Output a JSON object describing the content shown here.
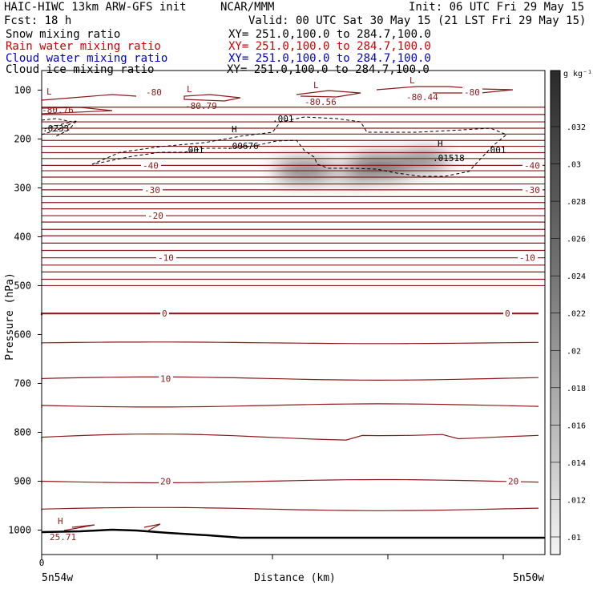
{
  "header": {
    "title_left": "HAIC-HIWC 13km ARW-GFS init",
    "center_org": "NCAR/MMM",
    "init_time": "Init: 06 UTC Fri 29 May 15",
    "fcst": "Fcst:   18 h",
    "valid_time": "Valid: 00 UTC Sat 30 May 15 (21 LST Fri 29 May 15)"
  },
  "legend_rows": [
    {
      "name": "Snow mixing ratio",
      "xy": "XY= 251.0,100.0 to 284.7,100.0",
      "color": "black"
    },
    {
      "name": "Rain water mixing ratio",
      "xy": "XY= 251.0,100.0 to 284.7,100.0",
      "color": "red"
    },
    {
      "name": "Cloud water mixing ratio",
      "xy": "XY= 251.0,100.0 to 284.7,100.0",
      "color": "blue"
    },
    {
      "name": "Cloud ice mixing ratio",
      "xy": "XY= 251.0,100.0 to 284.7,100.0",
      "color": "black"
    }
  ],
  "colors": {
    "temp_contour": "#8b1a1a",
    "terrain": "#000000",
    "cloud_ice_contour": "#000000",
    "shading": "#303030"
  },
  "chart_data": {
    "type": "cross-section",
    "ylabel": "Pressure (hPa)",
    "xlabel": "Distance (km)",
    "x_tick_labels": [
      "0"
    ],
    "x_end_labels": {
      "left": "5n54w",
      "right": "5n50w"
    },
    "y_ticks": [
      100,
      200,
      300,
      400,
      500,
      600,
      700,
      800,
      900,
      1000
    ],
    "ylim": [
      1050,
      60
    ],
    "temperature_labels": [
      {
        "value": "-80",
        "p": 104
      },
      {
        "value": "-80",
        "p": 104
      },
      {
        "value": "-40",
        "p": 254
      },
      {
        "value": "-40",
        "p": 254
      },
      {
        "value": "-30",
        "p": 304
      },
      {
        "value": "-30",
        "p": 304
      },
      {
        "value": "-20",
        "p": 357
      },
      {
        "value": "-10",
        "p": 443
      },
      {
        "value": "-10",
        "p": 443
      },
      {
        "value": "0",
        "p": 557
      },
      {
        "value": "0",
        "p": 557
      },
      {
        "value": "10",
        "p": 690
      },
      {
        "value": "20",
        "p": 900
      },
      {
        "value": "20",
        "p": 900
      }
    ],
    "extrema_labels": [
      {
        "mark": "L",
        "value": "-80.76"
      },
      {
        "mark": "L",
        "value": "-80.79"
      },
      {
        "mark": "L",
        "value": "-80.56"
      },
      {
        "mark": "L",
        "value": "-80.44"
      },
      {
        "mark": "H",
        "value": ".00676"
      },
      {
        "mark": "H",
        "value": ".01518"
      },
      {
        "mark": "H",
        "value": "25.71"
      }
    ],
    "cloud_ice_labels": [
      ".001",
      ".001",
      ".001",
      ".0233"
    ],
    "colorbar": {
      "unit": "g kg⁻¹",
      "labels": [
        ".032",
        ".03",
        ".028",
        ".026",
        ".024",
        ".022",
        ".02",
        ".018",
        ".016",
        ".014",
        ".012",
        ".01"
      ]
    }
  }
}
